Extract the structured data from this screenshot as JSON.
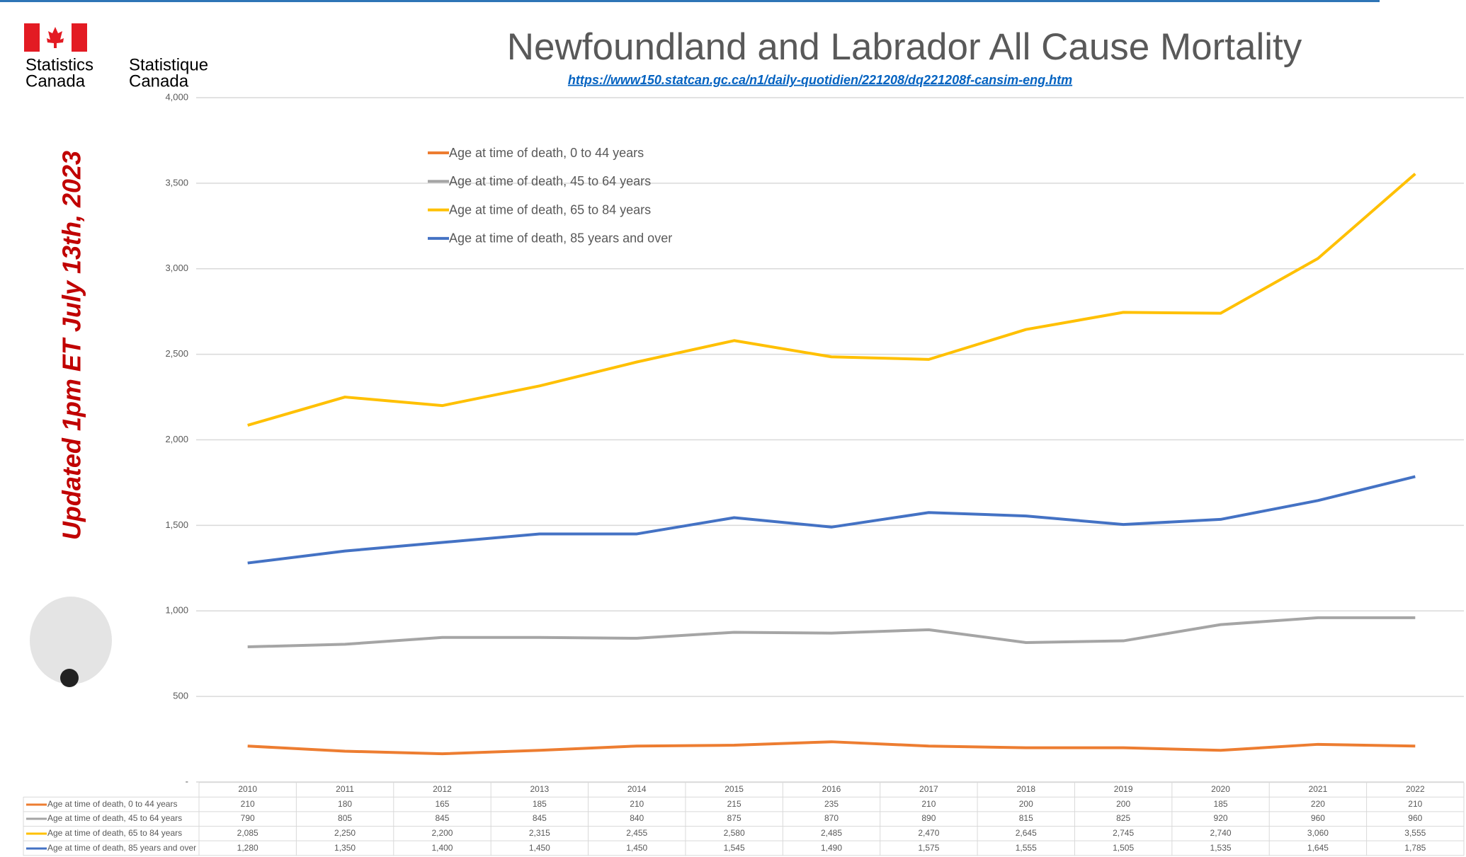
{
  "header": {
    "logo_en": [
      "Statistics",
      "Canada"
    ],
    "logo_fr": [
      "Statistique",
      "Canada"
    ]
  },
  "chart_data": {
    "type": "line",
    "title": "Newfoundland and Labrador All Cause Mortality",
    "subtitle": "https://www150.statcan.gc.ca/n1/daily-quotidien/221208/dq221208f-cansim-eng.htm",
    "annotation": "Updated 1pm ET July 13th, 2023",
    "categories": [
      "2010",
      "2011",
      "2012",
      "2013",
      "2014",
      "2015",
      "2016",
      "2017",
      "2018",
      "2019",
      "2020",
      "2021",
      "2022"
    ],
    "series": [
      {
        "name": "Age at time of death, 0 to 44 years",
        "color": "#ed7d31",
        "values": [
          210,
          180,
          165,
          185,
          210,
          215,
          235,
          210,
          200,
          200,
          185,
          220,
          210
        ],
        "value_labels": [
          "210",
          "180",
          "165",
          "185",
          "210",
          "215",
          "235",
          "210",
          "200",
          "200",
          "185",
          "220",
          "210"
        ]
      },
      {
        "name": "Age at time of death, 45 to 64 years",
        "color": "#a5a5a5",
        "values": [
          790,
          805,
          845,
          845,
          840,
          875,
          870,
          890,
          815,
          825,
          920,
          960,
          960
        ],
        "value_labels": [
          "790",
          "805",
          "845",
          "845",
          "840",
          "875",
          "870",
          "890",
          "815",
          "825",
          "920",
          "960",
          "960"
        ]
      },
      {
        "name": "Age at time of death, 65 to 84 years",
        "color": "#ffc000",
        "values": [
          2085,
          2250,
          2200,
          2315,
          2455,
          2580,
          2485,
          2470,
          2645,
          2745,
          2740,
          3060,
          3555
        ],
        "value_labels": [
          "2,085",
          "2,250",
          "2,200",
          "2,315",
          "2,455",
          "2,580",
          "2,485",
          "2,470",
          "2,645",
          "2,745",
          "2,740",
          "3,060",
          "3,555"
        ]
      },
      {
        "name": "Age at time of death, 85 years and over",
        "color": "#4472c4",
        "values": [
          1280,
          1350,
          1400,
          1450,
          1450,
          1545,
          1490,
          1575,
          1555,
          1505,
          1535,
          1645,
          1785
        ],
        "value_labels": [
          "1,280",
          "1,350",
          "1,400",
          "1,450",
          "1,450",
          "1,545",
          "1,490",
          "1,575",
          "1,555",
          "1,505",
          "1,535",
          "1,645",
          "1,785"
        ]
      }
    ],
    "ylim": [
      0,
      4000
    ],
    "yticks": [
      {
        "value": 0,
        "label": "-"
      },
      500,
      {
        "value": 1000,
        "label": "1,000"
      },
      {
        "value": 1500,
        "label": "1,500"
      },
      {
        "value": 2000,
        "label": "2,000"
      },
      {
        "value": 2500,
        "label": "2,500"
      },
      {
        "value": 3000,
        "label": "3,000"
      },
      {
        "value": 3500,
        "label": "3,500"
      },
      {
        "value": 4000,
        "label": "4,000"
      }
    ],
    "grid": true
  }
}
